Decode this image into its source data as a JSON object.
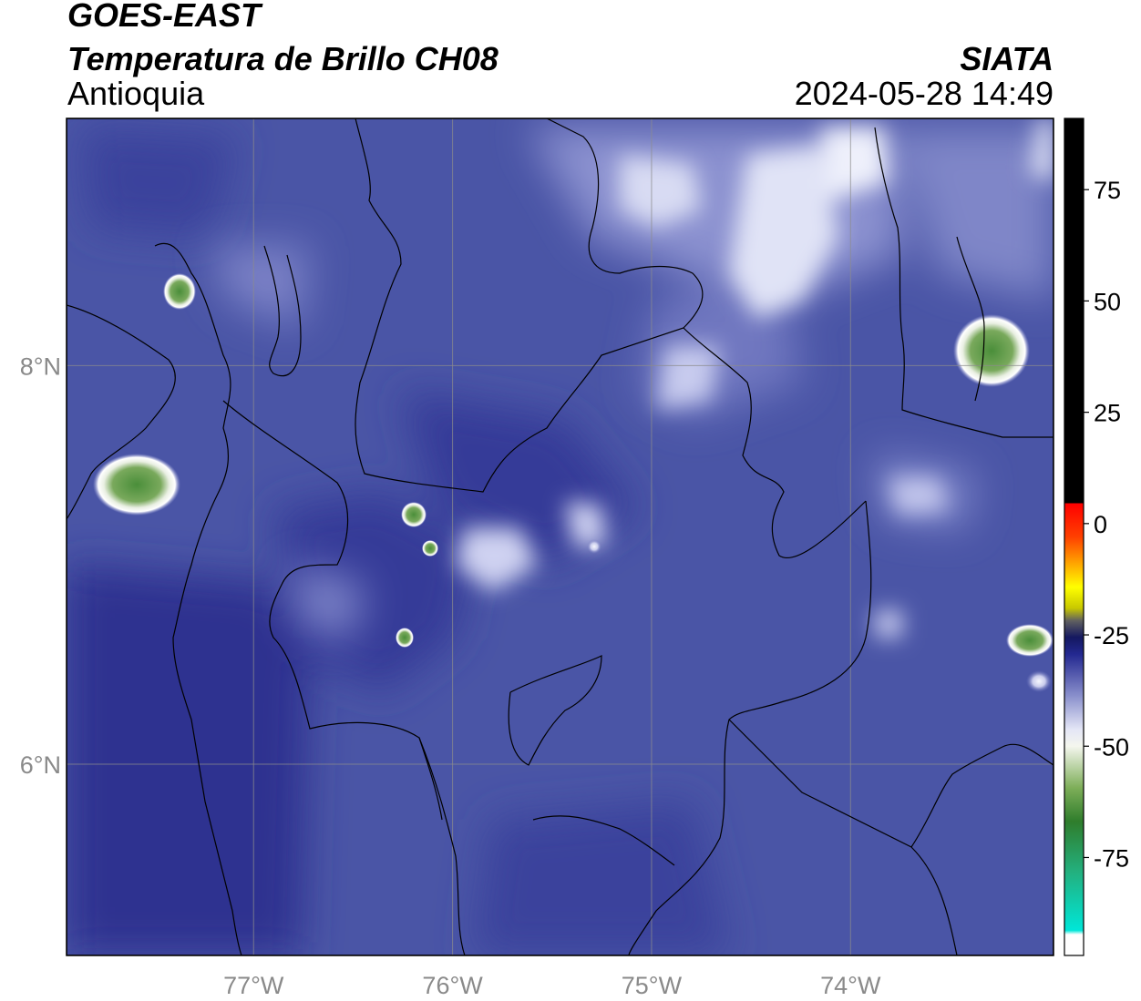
{
  "header": {
    "title": "GOES-EAST",
    "subtitle": "Temperatura de Brillo CH08",
    "region": "Antioquia",
    "organization": "SIATA",
    "datetime": "2024-05-28 14:49"
  },
  "map": {
    "lon_range": [
      -77.94,
      -72.98
    ],
    "lat_range": [
      5.04,
      9.24
    ],
    "lon_ticks": [
      {
        "value": -77,
        "label": "77°W"
      },
      {
        "value": -76,
        "label": "76°W"
      },
      {
        "value": -75,
        "label": "75°W"
      },
      {
        "value": -74,
        "label": "74°W"
      }
    ],
    "lat_ticks": [
      {
        "value": 8,
        "label": "8°N"
      },
      {
        "value": 6,
        "label": "6°N"
      }
    ],
    "grid": true,
    "colors": {
      "background": "#4a55a6",
      "dark_blue": "#2d3390",
      "light": "#9aa0d6",
      "cloud_top": "#eef0fb",
      "green": "#4e9a3c"
    }
  },
  "colorbar": {
    "ticks": [
      {
        "value": 75,
        "label": "75"
      },
      {
        "value": 50,
        "label": "50"
      },
      {
        "value": 25,
        "label": "25"
      },
      {
        "value": 0,
        "label": "0"
      },
      {
        "value": -25,
        "label": "-25"
      },
      {
        "value": -50,
        "label": "-50"
      },
      {
        "value": -75,
        "label": "-75"
      }
    ],
    "range": [
      -97,
      91
    ]
  }
}
